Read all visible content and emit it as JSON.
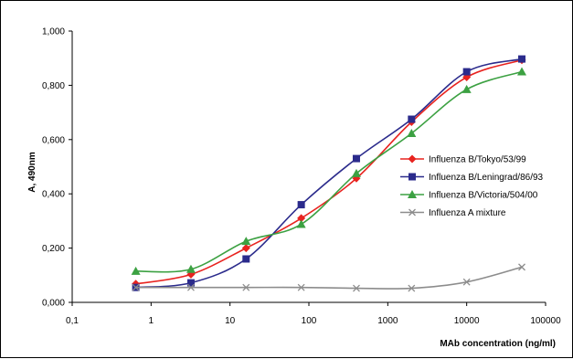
{
  "chart_data": {
    "type": "line",
    "xscale": "log",
    "xlabel": "MAb concentration (ng/ml)",
    "ylabel": "A, 490nm",
    "xlim": [
      0.1,
      100000
    ],
    "ylim": [
      0,
      1
    ],
    "x_ticks": [
      "0,1",
      "1",
      "10",
      "100",
      "1000",
      "10000",
      "100000"
    ],
    "y_ticks": [
      "0,000",
      "0,200",
      "0,400",
      "0,600",
      "0,800",
      "1,000"
    ],
    "grid": false,
    "legend_position": "right",
    "series": [
      {
        "name": "Influenza B/Tokyo/53/99",
        "color": "#e8231f",
        "marker": "diamond",
        "x": [
          0.64,
          3.2,
          16,
          80,
          400,
          2000,
          10000,
          50000
        ],
        "y": [
          0.068,
          0.103,
          0.2,
          0.31,
          0.457,
          0.665,
          0.83,
          0.893
        ]
      },
      {
        "name": "Influenza B/Leningrad/86/93",
        "color": "#2b2b8c",
        "marker": "square",
        "x": [
          0.64,
          3.2,
          16,
          80,
          400,
          2000,
          10000,
          50000
        ],
        "y": [
          0.055,
          0.072,
          0.16,
          0.36,
          0.53,
          0.675,
          0.85,
          0.897
        ]
      },
      {
        "name": "Influenza B/Victoria/504/00",
        "color": "#3ca142",
        "marker": "triangle",
        "x": [
          0.64,
          3.2,
          16,
          80,
          400,
          2000,
          10000,
          50000
        ],
        "y": [
          0.115,
          0.122,
          0.225,
          0.288,
          0.475,
          0.623,
          0.785,
          0.85
        ]
      },
      {
        "name": "Influenza A mixture",
        "color": "#8c8c8c",
        "marker": "x",
        "x": [
          0.64,
          3.2,
          16,
          80,
          400,
          2000,
          10000,
          50000
        ],
        "y": [
          0.055,
          0.055,
          0.055,
          0.055,
          0.052,
          0.052,
          0.075,
          0.13
        ]
      }
    ]
  }
}
